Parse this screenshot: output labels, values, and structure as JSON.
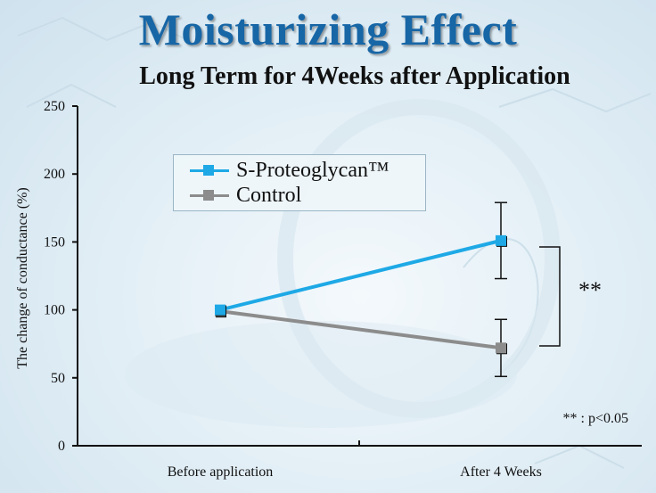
{
  "header": {
    "title": "Moisturizing Effect",
    "subtitle": "Long Term for 4Weeks after Application"
  },
  "colors": {
    "title": "#1766a6",
    "series_proteoglycan": "#1ea9e6",
    "series_control": "#8c8c8c"
  },
  "chart_data": {
    "type": "line",
    "categories": [
      "Before application",
      "After 4 Weeks"
    ],
    "ylabel": "The change of conductance (%)",
    "xlabel": "",
    "ylim": [
      0,
      250
    ],
    "yticks": [
      0,
      50,
      100,
      150,
      200,
      250
    ],
    "grid": false,
    "legend_position": "top-left",
    "series": [
      {
        "name": "S-Proteoglycan™",
        "values": [
          100,
          151
        ],
        "error": [
          0,
          28
        ]
      },
      {
        "name": "Control",
        "values": [
          99,
          72
        ],
        "error": [
          0,
          21
        ]
      }
    ],
    "significance": {
      "label": "**",
      "between": "After 4 Weeks"
    },
    "footnote": "** : p<0.05"
  }
}
